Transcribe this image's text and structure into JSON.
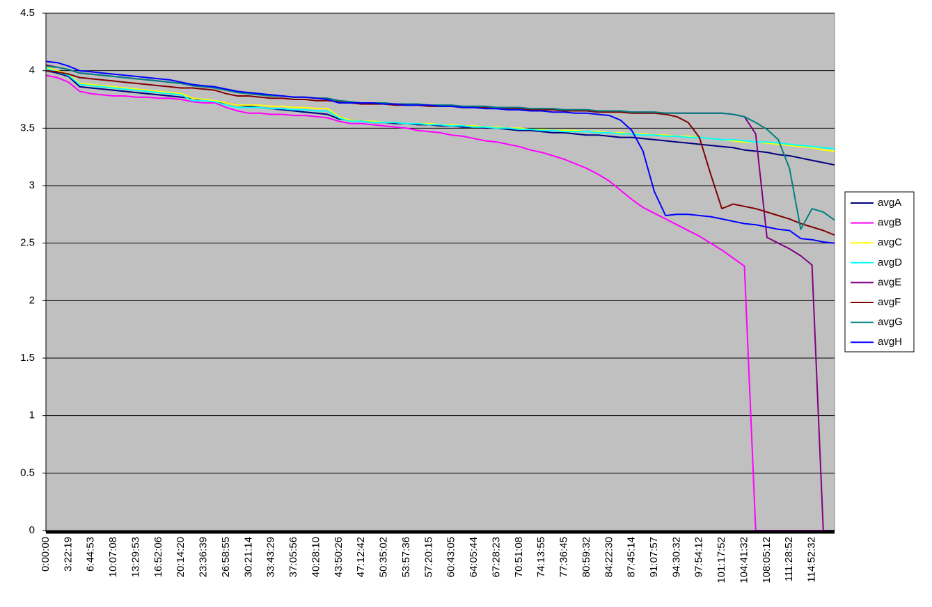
{
  "chart_data": {
    "type": "line",
    "categories": [
      "0:00:00",
      null,
      "3:22:19",
      null,
      "6:44:53",
      null,
      "10:07:08",
      null,
      "13:29:53",
      null,
      "16:52:06",
      null,
      "20:14:20",
      null,
      "23:36:39",
      null,
      "26:58:55",
      null,
      "30:21:14",
      null,
      "33:43:29",
      null,
      "37:05:56",
      null,
      "40:28:10",
      null,
      "43:50:26",
      null,
      "47:12:42",
      null,
      "50:35:02",
      null,
      "53:57:36",
      null,
      "57:20:15",
      null,
      "60:43:05",
      null,
      "64:05:44",
      null,
      "67:28:23",
      null,
      "70:51:08",
      null,
      "74:13:55",
      null,
      "77:36:45",
      null,
      "80:59:32",
      null,
      "84:22:30",
      null,
      "87:45:14",
      null,
      "91:07:57",
      null,
      "94:30:32",
      null,
      "97:54:12",
      null,
      "101:17:52",
      null,
      "104:41:32",
      null,
      "108:05:12",
      null,
      "111:28:52",
      null,
      "114:52:32",
      null,
      null
    ],
    "series": [
      {
        "name": "avgA",
        "color": "#000080",
        "values": [
          4.0,
          3.98,
          3.95,
          3.86,
          3.85,
          3.84,
          3.83,
          3.82,
          3.81,
          3.8,
          3.79,
          3.78,
          3.77,
          3.76,
          3.74,
          3.73,
          3.72,
          3.7,
          3.69,
          3.68,
          3.67,
          3.66,
          3.65,
          3.64,
          3.63,
          3.62,
          3.58,
          3.57,
          3.56,
          3.55,
          3.55,
          3.54,
          3.54,
          3.53,
          3.53,
          3.52,
          3.52,
          3.51,
          3.51,
          3.5,
          3.5,
          3.49,
          3.48,
          3.48,
          3.47,
          3.46,
          3.46,
          3.45,
          3.44,
          3.44,
          3.43,
          3.42,
          3.42,
          3.41,
          3.4,
          3.39,
          3.38,
          3.37,
          3.36,
          3.35,
          3.34,
          3.33,
          3.31,
          3.3,
          3.29,
          3.27,
          3.26,
          3.24,
          3.22,
          3.2,
          3.18
        ]
      },
      {
        "name": "avgB",
        "color": "#FF00FF",
        "values": [
          3.96,
          3.94,
          3.9,
          3.82,
          3.8,
          3.79,
          3.78,
          3.78,
          3.77,
          3.77,
          3.76,
          3.76,
          3.75,
          3.73,
          3.72,
          3.72,
          3.68,
          3.65,
          3.63,
          3.63,
          3.62,
          3.62,
          3.61,
          3.61,
          3.6,
          3.59,
          3.56,
          3.54,
          3.54,
          3.53,
          3.52,
          3.51,
          3.5,
          3.48,
          3.47,
          3.46,
          3.44,
          3.43,
          3.41,
          3.39,
          3.38,
          3.36,
          3.34,
          3.31,
          3.29,
          3.26,
          3.23,
          3.19,
          3.15,
          3.1,
          3.04,
          2.96,
          2.88,
          2.81,
          2.76,
          2.71,
          2.66,
          2.61,
          2.56,
          2.5,
          2.44,
          2.37,
          2.3,
          0,
          0,
          0,
          0,
          0,
          0,
          0,
          0
        ]
      },
      {
        "name": "avgC",
        "color": "#FFFF00",
        "values": [
          4.03,
          4.0,
          3.97,
          3.89,
          3.88,
          3.87,
          3.86,
          3.85,
          3.84,
          3.83,
          3.82,
          3.81,
          3.8,
          3.76,
          3.75,
          3.74,
          3.72,
          3.7,
          3.7,
          3.7,
          3.69,
          3.69,
          3.68,
          3.68,
          3.67,
          3.67,
          3.6,
          3.57,
          3.56,
          3.56,
          3.55,
          3.55,
          3.54,
          3.54,
          3.54,
          3.53,
          3.53,
          3.52,
          3.52,
          3.51,
          3.51,
          3.5,
          3.5,
          3.49,
          3.49,
          3.48,
          3.48,
          3.48,
          3.47,
          3.47,
          3.46,
          3.46,
          3.45,
          3.45,
          3.44,
          3.44,
          3.43,
          3.43,
          3.42,
          3.41,
          3.4,
          3.39,
          3.38,
          3.38,
          3.37,
          3.36,
          3.35,
          3.34,
          3.33,
          3.31,
          3.3
        ]
      },
      {
        "name": "avgD",
        "color": "#00FFFF",
        "values": [
          4.02,
          3.99,
          3.96,
          3.88,
          3.87,
          3.86,
          3.85,
          3.84,
          3.83,
          3.82,
          3.81,
          3.8,
          3.79,
          3.74,
          3.74,
          3.73,
          3.7,
          3.68,
          3.68,
          3.68,
          3.67,
          3.67,
          3.66,
          3.66,
          3.65,
          3.65,
          3.59,
          3.56,
          3.56,
          3.55,
          3.55,
          3.55,
          3.54,
          3.54,
          3.53,
          3.53,
          3.52,
          3.52,
          3.51,
          3.51,
          3.5,
          3.5,
          3.49,
          3.49,
          3.48,
          3.48,
          3.47,
          3.47,
          3.47,
          3.46,
          3.46,
          3.45,
          3.45,
          3.44,
          3.44,
          3.43,
          3.43,
          3.42,
          3.42,
          3.41,
          3.4,
          3.4,
          3.39,
          3.38,
          3.38,
          3.37,
          3.36,
          3.35,
          3.34,
          3.33,
          3.32
        ]
      },
      {
        "name": "avgE",
        "color": "#800080",
        "values": [
          4.05,
          4.03,
          4.01,
          3.98,
          3.97,
          3.96,
          3.95,
          3.94,
          3.93,
          3.92,
          3.91,
          3.9,
          3.89,
          3.87,
          3.86,
          3.85,
          3.83,
          3.81,
          3.8,
          3.79,
          3.78,
          3.78,
          3.77,
          3.77,
          3.76,
          3.76,
          3.74,
          3.73,
          3.72,
          3.72,
          3.72,
          3.71,
          3.71,
          3.71,
          3.7,
          3.7,
          3.7,
          3.69,
          3.69,
          3.69,
          3.68,
          3.68,
          3.68,
          3.67,
          3.67,
          3.67,
          3.66,
          3.66,
          3.66,
          3.65,
          3.65,
          3.65,
          3.64,
          3.64,
          3.64,
          3.63,
          3.63,
          3.63,
          3.63,
          3.63,
          3.63,
          3.62,
          3.6,
          3.45,
          2.55,
          2.5,
          2.45,
          2.39,
          2.31,
          0,
          0
        ]
      },
      {
        "name": "avgF",
        "color": "#800000",
        "values": [
          4.0,
          3.99,
          3.97,
          3.94,
          3.93,
          3.92,
          3.91,
          3.9,
          3.89,
          3.88,
          3.87,
          3.86,
          3.85,
          3.85,
          3.84,
          3.83,
          3.8,
          3.78,
          3.78,
          3.77,
          3.76,
          3.76,
          3.75,
          3.75,
          3.74,
          3.74,
          3.73,
          3.72,
          3.71,
          3.71,
          3.71,
          3.7,
          3.7,
          3.7,
          3.69,
          3.69,
          3.69,
          3.68,
          3.68,
          3.68,
          3.67,
          3.67,
          3.67,
          3.66,
          3.66,
          3.66,
          3.65,
          3.65,
          3.65,
          3.64,
          3.64,
          3.64,
          3.63,
          3.63,
          3.63,
          3.62,
          3.6,
          3.55,
          3.42,
          3.1,
          2.8,
          2.84,
          2.82,
          2.8,
          2.77,
          2.74,
          2.71,
          2.67,
          2.64,
          2.61,
          2.57
        ]
      },
      {
        "name": "avgG",
        "color": "#008080",
        "values": [
          4.04,
          4.03,
          4.01,
          3.98,
          3.97,
          3.96,
          3.95,
          3.94,
          3.93,
          3.92,
          3.91,
          3.9,
          3.89,
          3.87,
          3.86,
          3.85,
          3.83,
          3.81,
          3.8,
          3.79,
          3.78,
          3.78,
          3.77,
          3.77,
          3.76,
          3.76,
          3.74,
          3.73,
          3.72,
          3.72,
          3.72,
          3.71,
          3.71,
          3.71,
          3.7,
          3.7,
          3.7,
          3.69,
          3.69,
          3.69,
          3.68,
          3.68,
          3.68,
          3.67,
          3.67,
          3.67,
          3.66,
          3.66,
          3.66,
          3.65,
          3.65,
          3.65,
          3.64,
          3.64,
          3.64,
          3.63,
          3.63,
          3.63,
          3.63,
          3.63,
          3.63,
          3.62,
          3.6,
          3.55,
          3.49,
          3.4,
          3.15,
          2.62,
          2.8,
          2.77,
          2.7
        ]
      },
      {
        "name": "avgH",
        "color": "#0000FF",
        "values": [
          4.08,
          4.07,
          4.04,
          4.0,
          3.99,
          3.98,
          3.97,
          3.96,
          3.95,
          3.94,
          3.93,
          3.92,
          3.9,
          3.88,
          3.87,
          3.86,
          3.84,
          3.82,
          3.81,
          3.8,
          3.79,
          3.78,
          3.77,
          3.77,
          3.76,
          3.75,
          3.72,
          3.72,
          3.72,
          3.72,
          3.71,
          3.71,
          3.7,
          3.7,
          3.7,
          3.69,
          3.69,
          3.68,
          3.68,
          3.67,
          3.67,
          3.66,
          3.66,
          3.65,
          3.65,
          3.64,
          3.64,
          3.63,
          3.63,
          3.62,
          3.61,
          3.57,
          3.48,
          3.3,
          2.95,
          2.74,
          2.75,
          2.75,
          2.74,
          2.73,
          2.71,
          2.69,
          2.67,
          2.66,
          2.64,
          2.62,
          2.61,
          2.54,
          2.53,
          2.51,
          2.5
        ]
      }
    ],
    "ylim": [
      0,
      4.5
    ],
    "yticks": [
      0,
      0.5,
      1,
      1.5,
      2,
      2.5,
      3,
      3.5,
      4,
      4.5
    ],
    "grid": true,
    "legend": "right"
  }
}
